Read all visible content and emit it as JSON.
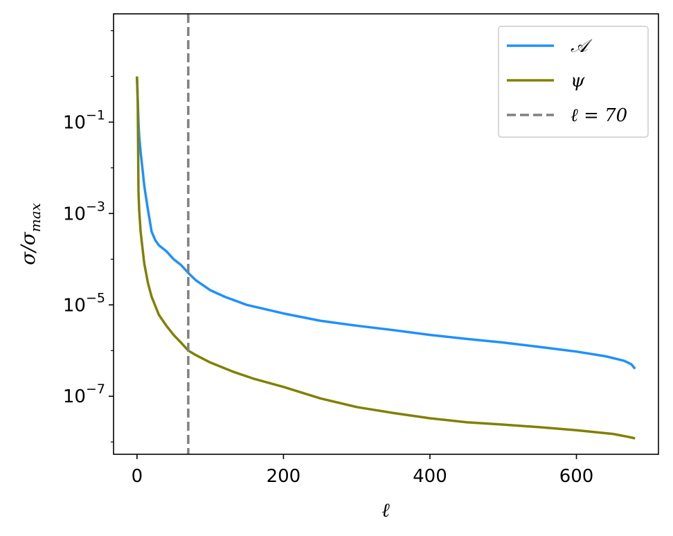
{
  "chart_data": {
    "type": "line",
    "xlabel": "ℓ",
    "ylabel": {
      "main": "σ/σ",
      "sub": "max"
    },
    "xlim": [
      -32,
      712
    ],
    "ylim_log10": [
      -8.27,
      1.37
    ],
    "yscale": "log",
    "grid": false,
    "legend_position": "top-right",
    "xticks": [
      {
        "value": 0,
        "label": "0"
      },
      {
        "value": 200,
        "label": "200"
      },
      {
        "value": 400,
        "label": "400"
      },
      {
        "value": 600,
        "label": "600"
      }
    ],
    "yticks": [
      {
        "exp": -1,
        "base": "10",
        "label": "−1"
      },
      {
        "exp": -3,
        "base": "10",
        "label": "−3"
      },
      {
        "exp": -5,
        "base": "10",
        "label": "−5"
      },
      {
        "exp": -7,
        "base": "10",
        "label": "−7"
      }
    ],
    "vline": {
      "x": 70,
      "name": "ℓ = 70",
      "color": "#808080",
      "dashed": true
    },
    "series": [
      {
        "name": "𝒜",
        "color": "#1e90ff",
        "points": [
          [
            0,
            1.0
          ],
          [
            2,
            0.1
          ],
          [
            3,
            0.05
          ],
          [
            5,
            0.022
          ],
          [
            8,
            0.008
          ],
          [
            10,
            0.004
          ],
          [
            15,
            0.0012
          ],
          [
            20,
            0.0004
          ],
          [
            25,
            0.00026
          ],
          [
            30,
            0.0002
          ],
          [
            40,
            0.00015
          ],
          [
            50,
            0.0001
          ],
          [
            60,
            7.5e-05
          ],
          [
            70,
            5e-05
          ],
          [
            80,
            3.5e-05
          ],
          [
            100,
            2.1e-05
          ],
          [
            120,
            1.5e-05
          ],
          [
            150,
            1e-05
          ],
          [
            200,
            6.5e-06
          ],
          [
            250,
            4.5e-06
          ],
          [
            300,
            3.5e-06
          ],
          [
            350,
            2.8e-06
          ],
          [
            400,
            2.2e-06
          ],
          [
            450,
            1.8e-06
          ],
          [
            500,
            1.5e-06
          ],
          [
            550,
            1.2e-06
          ],
          [
            600,
            9.5e-07
          ],
          [
            640,
            7.5e-07
          ],
          [
            665,
            6e-07
          ],
          [
            675,
            5e-07
          ],
          [
            680,
            4e-07
          ]
        ]
      },
      {
        "name": "ψ",
        "color": "#808000",
        "points": [
          [
            0,
            1.0
          ],
          [
            1,
            0.3
          ],
          [
            2,
            0.003
          ],
          [
            3,
            0.0012
          ],
          [
            5,
            0.0004
          ],
          [
            8,
            0.00015
          ],
          [
            10,
            8e-05
          ],
          [
            15,
            3e-05
          ],
          [
            20,
            1.5e-05
          ],
          [
            30,
            6e-06
          ],
          [
            40,
            3.5e-06
          ],
          [
            50,
            2.2e-06
          ],
          [
            60,
            1.5e-06
          ],
          [
            70,
            1e-06
          ],
          [
            80,
            8e-07
          ],
          [
            100,
            5.5e-07
          ],
          [
            130,
            3.5e-07
          ],
          [
            160,
            2.4e-07
          ],
          [
            200,
            1.6e-07
          ],
          [
            250,
            9e-08
          ],
          [
            300,
            5.8e-08
          ],
          [
            350,
            4.3e-08
          ],
          [
            400,
            3.3e-08
          ],
          [
            450,
            2.7e-08
          ],
          [
            500,
            2.4e-08
          ],
          [
            550,
            2.1e-08
          ],
          [
            600,
            1.8e-08
          ],
          [
            650,
            1.5e-08
          ],
          [
            670,
            1.3e-08
          ],
          [
            680,
            1.2e-08
          ]
        ]
      }
    ],
    "legend": [
      {
        "label": "𝒜",
        "color": "#1e90ff",
        "dashed": false
      },
      {
        "label": "ψ",
        "color": "#808000",
        "dashed": false
      },
      {
        "label": "ℓ = 70",
        "color": "#808080",
        "dashed": true
      }
    ]
  }
}
